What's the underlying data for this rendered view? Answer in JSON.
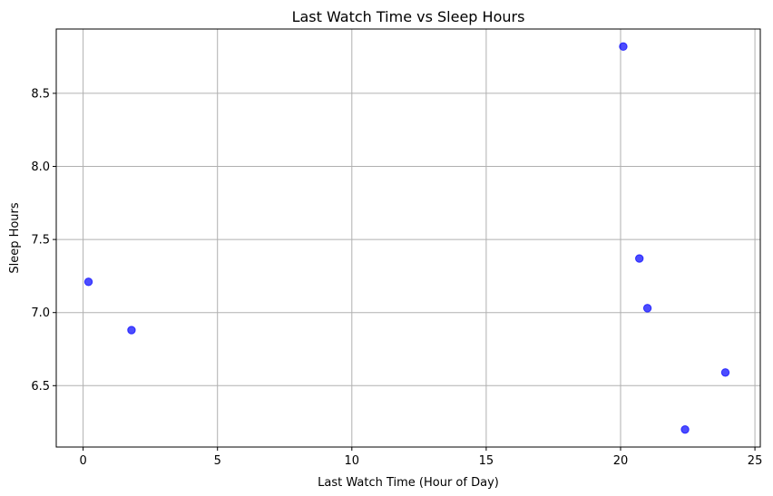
{
  "chart_data": {
    "type": "scatter",
    "title": "Last Watch Time vs Sleep Hours",
    "xlabel": "Last Watch Time (Hour of Day)",
    "ylabel": "Sleep Hours",
    "xlim": [
      -1.0,
      25.2
    ],
    "ylim": [
      6.08,
      8.94
    ],
    "xticks": [
      0,
      5,
      10,
      15,
      20,
      25
    ],
    "xtick_labels": [
      "0",
      "5",
      "10",
      "15",
      "20",
      "25"
    ],
    "yticks": [
      6.5,
      7.0,
      7.5,
      8.0,
      8.5
    ],
    "ytick_labels": [
      "6.5",
      "7.0",
      "7.5",
      "8.0",
      "8.5"
    ],
    "grid": true,
    "marker_color": "#0000ff",
    "marker_alpha": 0.7,
    "points": [
      {
        "x": 0.2,
        "y": 7.21
      },
      {
        "x": 1.8,
        "y": 6.88
      },
      {
        "x": 20.1,
        "y": 8.82
      },
      {
        "x": 20.7,
        "y": 7.37
      },
      {
        "x": 21.0,
        "y": 7.03
      },
      {
        "x": 22.4,
        "y": 6.2
      },
      {
        "x": 23.9,
        "y": 6.59
      }
    ]
  }
}
